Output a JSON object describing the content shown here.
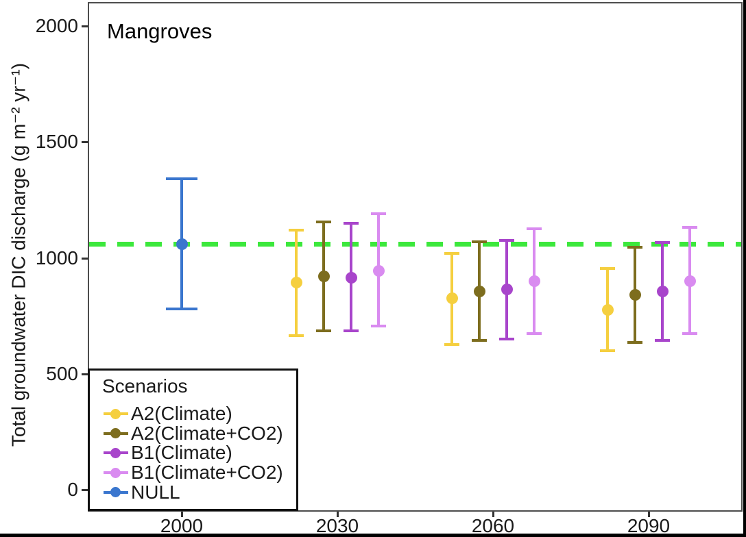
{
  "chart_data": {
    "type": "pointrange",
    "title": "Mangroves",
    "xlabel": "",
    "ylabel": "Total groundwater DIC discharge (g m⁻² yr⁻¹)",
    "x_ticks": [
      2000,
      2030,
      2060,
      2090
    ],
    "y_ticks": [
      0,
      500,
      1000,
      1500,
      2000
    ],
    "ylim": [
      -100,
      2100
    ],
    "grid": "off",
    "reference_line": {
      "value": 1060,
      "style": "dashed",
      "color": "#3ce83c"
    },
    "series": [
      {
        "name": "A2(Climate)",
        "color": "#f5cf3f",
        "points": [
          {
            "x": 2030,
            "mean": 895,
            "lower": 665,
            "upper": 1120
          },
          {
            "x": 2060,
            "mean": 825,
            "lower": 625,
            "upper": 1020
          },
          {
            "x": 2090,
            "mean": 775,
            "lower": 600,
            "upper": 955
          }
        ]
      },
      {
        "name": "A2(Climate+CO2)",
        "color": "#7d6d1e",
        "points": [
          {
            "x": 2030,
            "mean": 920,
            "lower": 685,
            "upper": 1155
          },
          {
            "x": 2060,
            "mean": 855,
            "lower": 645,
            "upper": 1070
          },
          {
            "x": 2090,
            "mean": 840,
            "lower": 635,
            "upper": 1045
          }
        ]
      },
      {
        "name": "B1(Climate)",
        "color": "#a845cb",
        "points": [
          {
            "x": 2030,
            "mean": 915,
            "lower": 685,
            "upper": 1150
          },
          {
            "x": 2060,
            "mean": 865,
            "lower": 650,
            "upper": 1075
          },
          {
            "x": 2090,
            "mean": 855,
            "lower": 645,
            "upper": 1065
          }
        ]
      },
      {
        "name": "B1(Climate+CO2)",
        "color": "#d98bf0",
        "points": [
          {
            "x": 2030,
            "mean": 945,
            "lower": 705,
            "upper": 1190
          },
          {
            "x": 2060,
            "mean": 900,
            "lower": 675,
            "upper": 1125
          },
          {
            "x": 2090,
            "mean": 900,
            "lower": 675,
            "upper": 1130
          }
        ]
      },
      {
        "name": "NULL",
        "color": "#3a76ce",
        "points": [
          {
            "x": 2000,
            "mean": 1060,
            "lower": 780,
            "upper": 1340
          }
        ]
      }
    ],
    "legend": {
      "title": "Scenarios",
      "position": "bottom-left"
    }
  }
}
